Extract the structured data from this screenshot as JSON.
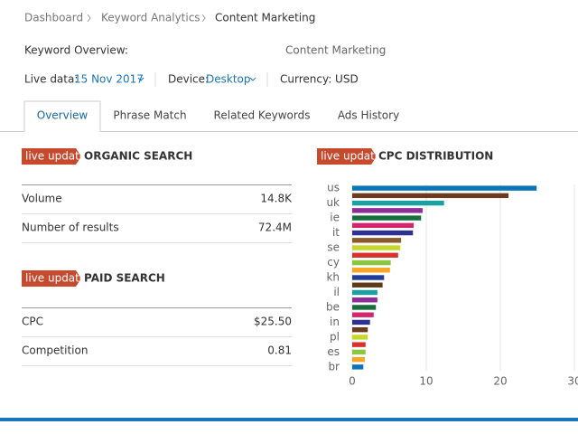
{
  "breadcrumb": [
    "Dashboard",
    "Keyword Analytics",
    "Content Marketing"
  ],
  "header": {
    "title": "Keyword Overview:",
    "subject": "Content Marketing"
  },
  "meta": {
    "live_label": "Live data:",
    "live_value": "15 Nov 2017",
    "device_label": "Device:",
    "device_value": "Desktop",
    "currency": "Currency: USD"
  },
  "tabs": [
    "Overview",
    "Phrase Match",
    "Related Keywords",
    "Ads History"
  ],
  "active_tab": 0,
  "organic": {
    "badge": "live update",
    "title": "ORGANIC SEARCH",
    "rows": [
      [
        "Volume",
        "14.8K"
      ],
      [
        "Number of results",
        "72.4M"
      ]
    ]
  },
  "paid": {
    "badge": "live update",
    "title": "PAID SEARCH",
    "rows": [
      [
        "CPC",
        "$25.50"
      ],
      [
        "Competition",
        "0.81"
      ]
    ]
  },
  "chart_data": {
    "type": "bar",
    "orientation": "horizontal",
    "badge": "live update",
    "title": "CPC DISTRIBUTION",
    "categories": [
      "us",
      null,
      "uk",
      null,
      "ie",
      null,
      "it",
      null,
      "se",
      null,
      "cy",
      null,
      "kh",
      null,
      "il",
      null,
      "be",
      null,
      "in",
      null,
      "pl",
      null,
      "es",
      null,
      "br"
    ],
    "values": [
      24.9,
      21.1,
      12.4,
      9.5,
      9.3,
      8.3,
      8.2,
      6.6,
      6.5,
      6.2,
      5.2,
      5.1,
      4.3,
      4.1,
      3.4,
      3.4,
      3.2,
      2.9,
      2.4,
      2.1,
      2.1,
      1.8,
      1.8,
      1.7,
      1.5
    ],
    "colors": [
      "#0b74b8",
      "#6b3a1f",
      "#1aa0a0",
      "#8e2d97",
      "#166e3a",
      "#d4266f",
      "#2e3192",
      "#8b5a2b",
      "#c6d62a",
      "#d8322e",
      "#8cc63f",
      "#f5a623",
      "#1f3d99",
      "#5c3a1a",
      "#1aa0a0",
      "#8e2d97",
      "#166e3a",
      "#d4266f",
      "#2e3192",
      "#6b3a1f",
      "#c6d62a",
      "#d8322e",
      "#8cc63f",
      "#f5a623",
      "#0b74b8"
    ],
    "xlim": [
      0,
      30
    ],
    "xticks": [
      0,
      10,
      20,
      30
    ],
    "grid": true
  }
}
